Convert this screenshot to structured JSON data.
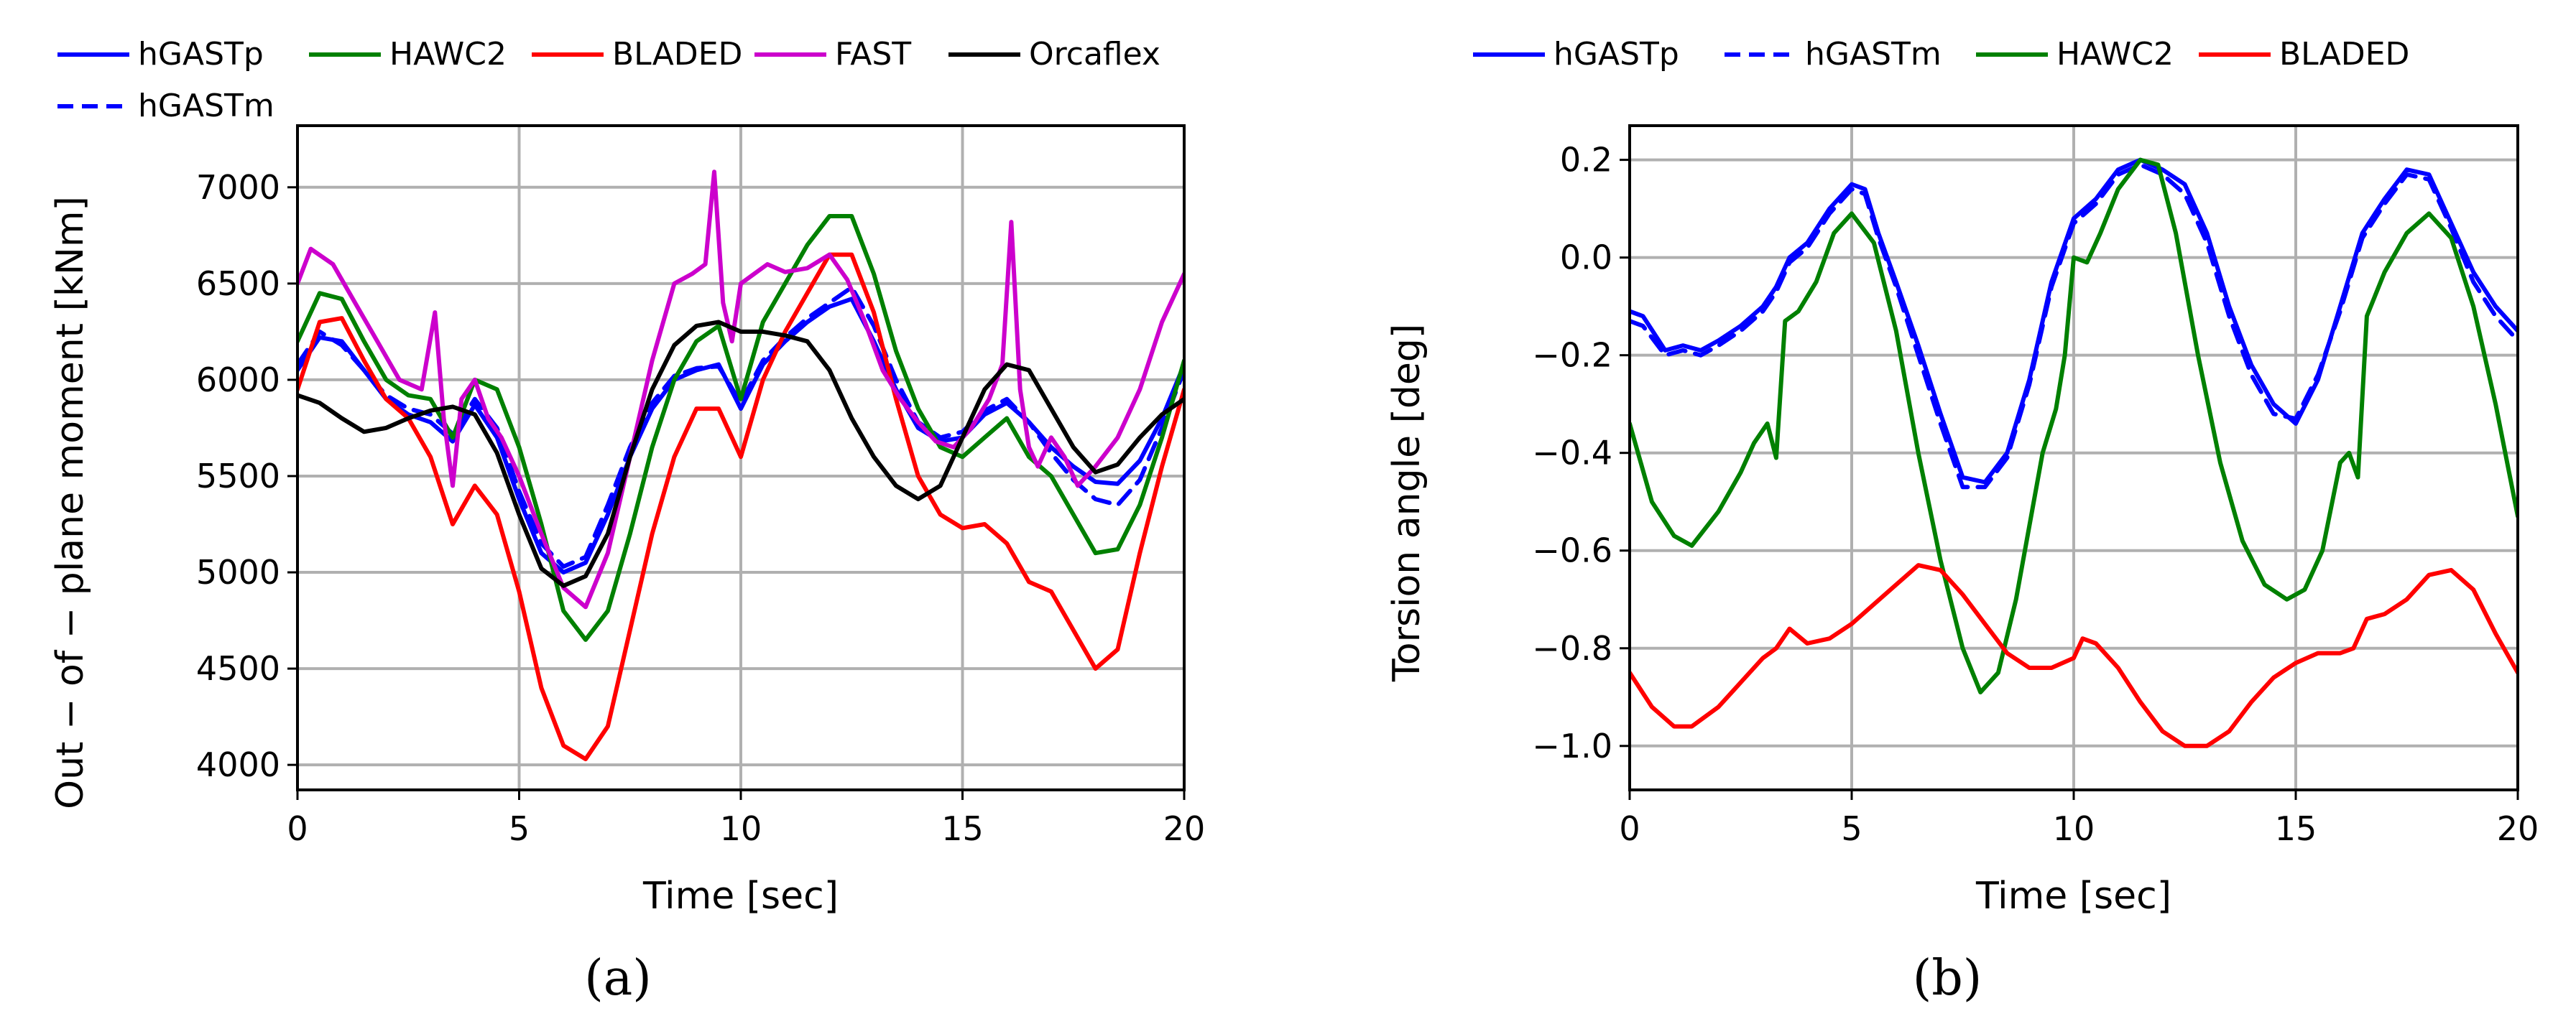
{
  "chart_data": [
    {
      "type": "line",
      "panel": "a",
      "panel_label": "(a)",
      "xlabel": "Time [sec]",
      "ylabel": "Out − of − plane moment [kNm]",
      "xlim": [
        0,
        20
      ],
      "ylim": [
        3870,
        7320
      ],
      "xticks": [
        0,
        5,
        10,
        15,
        20
      ],
      "yticks": [
        4000,
        4500,
        5000,
        5500,
        6000,
        6500,
        7000
      ],
      "grid": true,
      "legend_position": "top",
      "series": [
        {
          "name": "hGASTp",
          "color": "#0000ff",
          "dash": "solid",
          "x": [
            0,
            0.5,
            1,
            1.5,
            2,
            2.5,
            3,
            3.5,
            4,
            4.5,
            5,
            5.5,
            6,
            6.5,
            7,
            7.5,
            8,
            8.5,
            9,
            9.5,
            10,
            10.5,
            11,
            11.5,
            12,
            12.5,
            13,
            13.5,
            14,
            14.5,
            15,
            15.5,
            16,
            16.5,
            17,
            17.5,
            18,
            18.5,
            19,
            19.5,
            20
          ],
          "values": [
            6050,
            6220,
            6200,
            6050,
            5900,
            5820,
            5780,
            5680,
            5870,
            5700,
            5380,
            5100,
            5000,
            5050,
            5300,
            5600,
            5850,
            6000,
            6050,
            6080,
            5850,
            6080,
            6200,
            6300,
            6380,
            6420,
            6200,
            5950,
            5750,
            5680,
            5700,
            5820,
            5880,
            5780,
            5650,
            5550,
            5470,
            5460,
            5580,
            5800,
            6080
          ]
        },
        {
          "name": "hGASTm",
          "color": "#0000ff",
          "dash": "dashed",
          "x": [
            0,
            0.5,
            1,
            1.5,
            2,
            2.5,
            3,
            3.5,
            4,
            4.5,
            5,
            5.5,
            6,
            6.5,
            7,
            7.5,
            8,
            8.5,
            9,
            9.5,
            10,
            10.5,
            11,
            11.5,
            12,
            12.5,
            13,
            13.5,
            14,
            14.5,
            15,
            15.5,
            16,
            16.5,
            17,
            17.5,
            18,
            18.5,
            19,
            19.5,
            20
          ],
          "values": [
            6080,
            6250,
            6180,
            6050,
            5920,
            5850,
            5820,
            5720,
            5900,
            5750,
            5420,
            5150,
            5030,
            5080,
            5350,
            5650,
            5880,
            6020,
            6060,
            6070,
            5880,
            6100,
            6220,
            6320,
            6400,
            6480,
            6280,
            6000,
            5780,
            5700,
            5730,
            5840,
            5900,
            5780,
            5620,
            5480,
            5380,
            5350,
            5480,
            5750,
            6050
          ]
        },
        {
          "name": "HAWC2",
          "color": "#008000",
          "dash": "solid",
          "x": [
            0,
            0.5,
            1,
            1.5,
            2,
            2.5,
            3,
            3.5,
            4,
            4.5,
            5,
            5.5,
            6,
            6.5,
            7,
            7.5,
            8,
            8.5,
            9,
            9.5,
            10,
            10.5,
            11,
            11.5,
            12,
            12.5,
            13,
            13.5,
            14,
            14.5,
            15,
            15.5,
            16,
            16.5,
            17,
            17.5,
            18,
            18.5,
            19,
            19.5,
            20
          ],
          "values": [
            6200,
            6450,
            6420,
            6200,
            6000,
            5920,
            5900,
            5700,
            6000,
            5950,
            5650,
            5250,
            4800,
            4650,
            4800,
            5200,
            5650,
            6000,
            6200,
            6280,
            5900,
            6300,
            6500,
            6700,
            6850,
            6850,
            6550,
            6150,
            5850,
            5650,
            5600,
            5700,
            5800,
            5600,
            5500,
            5300,
            5100,
            5120,
            5350,
            5700,
            6100
          ]
        },
        {
          "name": "BLADED",
          "color": "#ff0000",
          "dash": "solid",
          "x": [
            0,
            0.5,
            1,
            1.5,
            2,
            2.5,
            3,
            3.5,
            4,
            4.5,
            5,
            5.5,
            6,
            6.5,
            7,
            7.5,
            8,
            8.5,
            9,
            9.5,
            10,
            10.5,
            11,
            11.5,
            12,
            12.5,
            13,
            13.5,
            14,
            14.5,
            15,
            15.5,
            16,
            16.5,
            17,
            17.5,
            18,
            18.5,
            19,
            19.5,
            20
          ],
          "values": [
            5950,
            6300,
            6320,
            6100,
            5900,
            5800,
            5600,
            5250,
            5450,
            5300,
            4900,
            4400,
            4100,
            4030,
            4200,
            4700,
            5200,
            5600,
            5850,
            5850,
            5600,
            6000,
            6250,
            6450,
            6650,
            6650,
            6350,
            5900,
            5500,
            5300,
            5230,
            5250,
            5150,
            4950,
            4900,
            4700,
            4500,
            4600,
            5100,
            5550,
            5950
          ]
        },
        {
          "name": "FAST",
          "color": "#cc00cc",
          "dash": "solid",
          "x": [
            0,
            0.3,
            0.8,
            1.3,
            1.8,
            2.3,
            2.8,
            3.1,
            3.3,
            3.5,
            3.7,
            4,
            4.3,
            4.6,
            5,
            5.5,
            6,
            6.5,
            7,
            7.5,
            8,
            8.5,
            8.9,
            9.2,
            9.4,
            9.6,
            9.8,
            10,
            10.3,
            10.6,
            11,
            11.5,
            12,
            12.4,
            12.8,
            13.2,
            13.6,
            14,
            14.4,
            14.8,
            15.2,
            15.6,
            15.9,
            16.1,
            16.3,
            16.5,
            16.7,
            17,
            17.3,
            17.6,
            18,
            18.5,
            19,
            19.5,
            20
          ],
          "values": [
            6500,
            6680,
            6600,
            6400,
            6200,
            6000,
            5950,
            6350,
            5800,
            5450,
            5900,
            6000,
            5800,
            5700,
            5500,
            5200,
            4920,
            4820,
            5100,
            5600,
            6100,
            6500,
            6550,
            6600,
            7080,
            6400,
            6200,
            6500,
            6550,
            6600,
            6560,
            6580,
            6650,
            6520,
            6300,
            6050,
            5900,
            5780,
            5680,
            5650,
            5750,
            5900,
            6080,
            6820,
            5950,
            5650,
            5550,
            5700,
            5600,
            5450,
            5550,
            5700,
            5950,
            6300,
            6550
          ]
        },
        {
          "name": "Orcaflex",
          "color": "#000000",
          "dash": "solid",
          "x": [
            0,
            0.5,
            1,
            1.5,
            2,
            2.5,
            3,
            3.5,
            4,
            4.5,
            5,
            5.5,
            6,
            6.5,
            7,
            7.5,
            8,
            8.5,
            9,
            9.5,
            10,
            10.5,
            11,
            11.5,
            12,
            12.5,
            13,
            13.5,
            14,
            14.5,
            15,
            15.5,
            16,
            16.5,
            17,
            17.5,
            18,
            18.5,
            19,
            19.5,
            20
          ],
          "values": [
            5920,
            5880,
            5800,
            5730,
            5750,
            5800,
            5840,
            5860,
            5820,
            5620,
            5300,
            5020,
            4930,
            4980,
            5200,
            5600,
            5950,
            6180,
            6280,
            6300,
            6250,
            6250,
            6230,
            6200,
            6050,
            5800,
            5600,
            5450,
            5380,
            5450,
            5700,
            5950,
            6080,
            6050,
            5850,
            5650,
            5520,
            5560,
            5700,
            5820,
            5900
          ]
        }
      ]
    },
    {
      "type": "line",
      "panel": "b",
      "panel_label": "(b)",
      "xlabel": "Time [sec]",
      "ylabel": "Torsion angle [deg]",
      "xlim": [
        0,
        20
      ],
      "ylim": [
        -1.09,
        0.27
      ],
      "xticks": [
        0,
        5,
        10,
        15,
        20
      ],
      "yticks": [
        0.2,
        0.0,
        -0.2,
        -0.4,
        -0.6,
        -0.8,
        -1.0
      ],
      "ytick_labels": [
        "0.2",
        "0.0",
        "−0.2",
        "−0.4",
        "−0.6",
        "−0.8",
        "−1.0"
      ],
      "grid": true,
      "legend_position": "top",
      "series": [
        {
          "name": "hGASTp",
          "color": "#0000ff",
          "dash": "solid",
          "x": [
            0,
            0.3,
            0.8,
            1.2,
            1.6,
            2,
            2.5,
            3,
            3.3,
            3.6,
            4,
            4.5,
            5,
            5.3,
            5.6,
            6,
            6.5,
            7,
            7.5,
            8,
            8.5,
            9,
            9.5,
            10,
            10.5,
            11,
            11.5,
            12,
            12.5,
            13,
            13.5,
            14,
            14.5,
            15,
            15.5,
            16,
            16.5,
            17,
            17.5,
            18,
            18.5,
            19,
            19.5,
            20
          ],
          "values": [
            -0.11,
            -0.12,
            -0.19,
            -0.18,
            -0.19,
            -0.17,
            -0.14,
            -0.1,
            -0.06,
            0.0,
            0.03,
            0.1,
            0.15,
            0.14,
            0.05,
            -0.05,
            -0.18,
            -0.32,
            -0.45,
            -0.46,
            -0.4,
            -0.25,
            -0.05,
            0.08,
            0.12,
            0.18,
            0.2,
            0.18,
            0.15,
            0.05,
            -0.1,
            -0.22,
            -0.3,
            -0.34,
            -0.25,
            -0.1,
            0.05,
            0.12,
            0.18,
            0.17,
            0.07,
            -0.03,
            -0.1,
            -0.15
          ]
        },
        {
          "name": "hGASTm",
          "color": "#0000ff",
          "dash": "dashed",
          "x": [
            0,
            0.3,
            0.8,
            1.2,
            1.6,
            2,
            2.5,
            3,
            3.3,
            3.6,
            4,
            4.5,
            5,
            5.3,
            5.6,
            6,
            6.5,
            7,
            7.5,
            8,
            8.5,
            9,
            9.5,
            10,
            10.5,
            11,
            11.5,
            12,
            12.5,
            13,
            13.5,
            14,
            14.5,
            15,
            15.5,
            16,
            16.5,
            17,
            17.5,
            18,
            18.5,
            19,
            19.5,
            20
          ],
          "values": [
            -0.13,
            -0.14,
            -0.2,
            -0.19,
            -0.2,
            -0.18,
            -0.15,
            -0.11,
            -0.07,
            -0.01,
            0.02,
            0.09,
            0.14,
            0.13,
            0.04,
            -0.06,
            -0.2,
            -0.34,
            -0.47,
            -0.47,
            -0.41,
            -0.26,
            -0.06,
            0.07,
            0.11,
            0.17,
            0.19,
            0.17,
            0.13,
            0.03,
            -0.12,
            -0.24,
            -0.32,
            -0.33,
            -0.24,
            -0.11,
            0.04,
            0.11,
            0.17,
            0.16,
            0.06,
            -0.05,
            -0.12,
            -0.17
          ]
        },
        {
          "name": "HAWC2",
          "color": "#008000",
          "dash": "solid",
          "x": [
            0,
            0.5,
            1,
            1.4,
            2,
            2.5,
            2.8,
            3.1,
            3.3,
            3.5,
            3.8,
            4.2,
            4.6,
            5,
            5.5,
            6,
            6.5,
            7,
            7.5,
            7.9,
            8.3,
            8.7,
            9,
            9.3,
            9.6,
            9.8,
            10,
            10.3,
            10.6,
            11,
            11.5,
            11.9,
            12.3,
            12.8,
            13.3,
            13.8,
            14.3,
            14.8,
            15.2,
            15.6,
            16,
            16.2,
            16.4,
            16.6,
            17,
            17.5,
            18,
            18.5,
            19,
            19.5,
            20
          ],
          "values": [
            -0.34,
            -0.5,
            -0.57,
            -0.59,
            -0.52,
            -0.44,
            -0.38,
            -0.34,
            -0.41,
            -0.13,
            -0.11,
            -0.05,
            0.05,
            0.09,
            0.03,
            -0.15,
            -0.4,
            -0.62,
            -0.8,
            -0.89,
            -0.85,
            -0.7,
            -0.55,
            -0.4,
            -0.31,
            -0.2,
            0.0,
            -0.01,
            0.05,
            0.14,
            0.2,
            0.19,
            0.05,
            -0.2,
            -0.42,
            -0.58,
            -0.67,
            -0.7,
            -0.68,
            -0.6,
            -0.42,
            -0.4,
            -0.45,
            -0.12,
            -0.03,
            0.05,
            0.09,
            0.04,
            -0.1,
            -0.3,
            -0.53
          ]
        },
        {
          "name": "BLADED",
          "color": "#ff0000",
          "dash": "solid",
          "x": [
            0,
            0.5,
            1,
            1.4,
            2,
            2.5,
            3,
            3.3,
            3.6,
            4,
            4.5,
            5,
            5.5,
            6,
            6.5,
            7,
            7.5,
            8,
            8.5,
            9,
            9.5,
            10,
            10.2,
            10.5,
            11,
            11.5,
            12,
            12.5,
            13,
            13.5,
            14,
            14.5,
            15,
            15.5,
            16,
            16.3,
            16.6,
            17,
            17.5,
            18,
            18.5,
            19,
            19.5,
            20
          ],
          "values": [
            -0.85,
            -0.92,
            -0.96,
            -0.96,
            -0.92,
            -0.87,
            -0.82,
            -0.8,
            -0.76,
            -0.79,
            -0.78,
            -0.75,
            -0.71,
            -0.67,
            -0.63,
            -0.64,
            -0.69,
            -0.75,
            -0.81,
            -0.84,
            -0.84,
            -0.82,
            -0.78,
            -0.79,
            -0.84,
            -0.91,
            -0.97,
            -1.0,
            -1.0,
            -0.97,
            -0.91,
            -0.86,
            -0.83,
            -0.81,
            -0.81,
            -0.8,
            -0.74,
            -0.73,
            -0.7,
            -0.65,
            -0.64,
            -0.68,
            -0.77,
            -0.85
          ]
        }
      ]
    }
  ]
}
